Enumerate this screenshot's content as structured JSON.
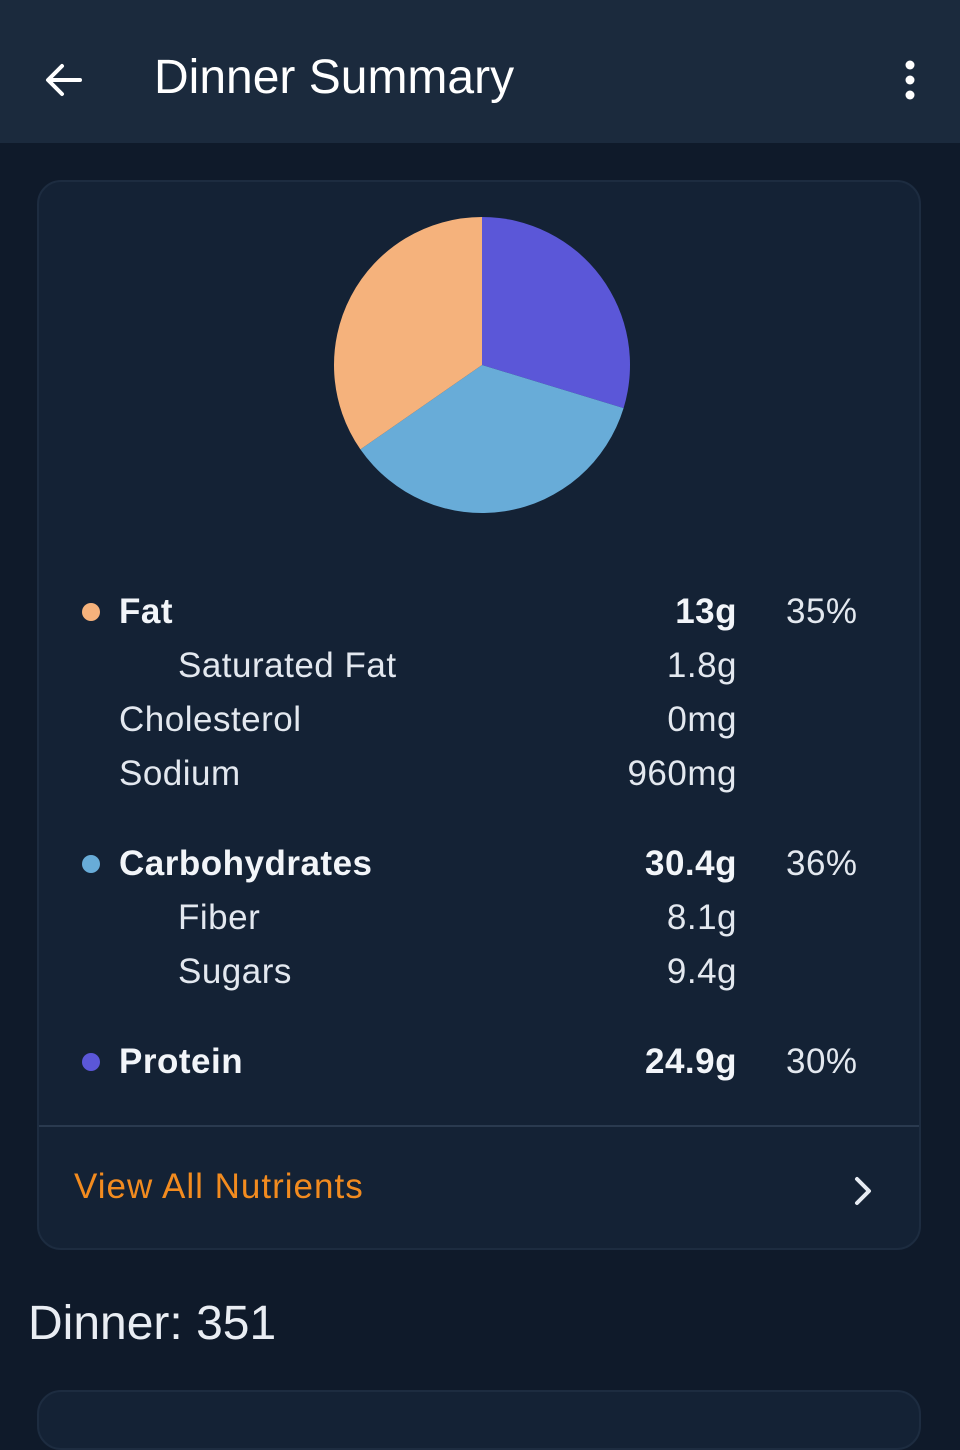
{
  "header": {
    "title": "Dinner Summary",
    "back_icon": "arrow-left-icon",
    "menu_icon": "more-vertical-icon",
    "background": "#1b2a3d"
  },
  "chart_data": {
    "type": "pie",
    "slices": [
      {
        "label": "Protein",
        "value": 30,
        "color": "#5b57d8"
      },
      {
        "label": "Carbohydrates",
        "value": 36,
        "color": "#68acd8"
      },
      {
        "label": "Fat",
        "value": 35,
        "color": "#f5b27c"
      }
    ]
  },
  "nutrients": {
    "fat": {
      "label": "Fat",
      "amount": "13g",
      "percent": "35%",
      "color": "#f5b27c"
    },
    "saturated_fat": {
      "label": "Saturated Fat",
      "amount": "1.8g"
    },
    "cholesterol": {
      "label": "Cholesterol",
      "amount": "0mg"
    },
    "sodium": {
      "label": "Sodium",
      "amount": "960mg"
    },
    "carbohydrates": {
      "label": "Carbohydrates",
      "amount": "30.4g",
      "percent": "36%",
      "color": "#68acd8"
    },
    "fiber": {
      "label": "Fiber",
      "amount": "8.1g"
    },
    "sugars": {
      "label": "Sugars",
      "amount": "9.4g"
    },
    "protein": {
      "label": "Protein",
      "amount": "24.9g",
      "percent": "30%",
      "color": "#5b57d8"
    }
  },
  "view_all": {
    "label": "View All Nutrients",
    "icon": "chevron-right-icon",
    "color": "#f28b1f"
  },
  "meal": {
    "heading": "Dinner: 351"
  }
}
